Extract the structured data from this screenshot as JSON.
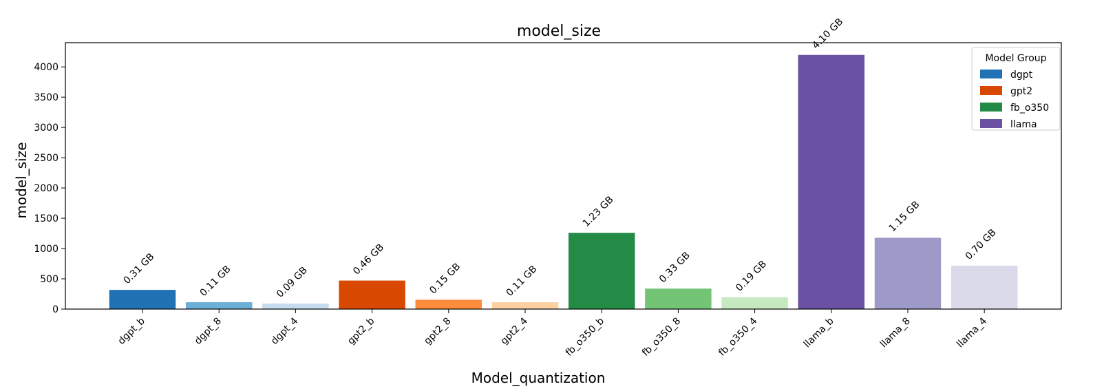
{
  "chart_data": {
    "type": "bar",
    "title": "model_size",
    "xlabel": "Model_quantization",
    "ylabel": "model_size",
    "ylim": [
      0,
      4400
    ],
    "yticks": [
      0,
      500,
      1000,
      1500,
      2000,
      2500,
      3000,
      3500,
      4000
    ],
    "grid": false,
    "legend": {
      "title": "Model Group",
      "placement": "top-right",
      "entries": [
        {
          "name": "dgpt",
          "color": "#2171b5"
        },
        {
          "name": "gpt2",
          "color": "#d94801"
        },
        {
          "name": "fb_o350",
          "color": "#238b45"
        },
        {
          "name": "llama",
          "color": "#6a51a3"
        }
      ]
    },
    "categories": [
      "dgpt_b",
      "dgpt_8",
      "dgpt_4",
      "gpt2_b",
      "gpt2_8",
      "gpt2_4",
      "fb_o350_b",
      "fb_o350_8",
      "fb_o350_4",
      "llama_b",
      "llama_8",
      "llama_4"
    ],
    "values": [
      317,
      113,
      92,
      471,
      154,
      113,
      1260,
      338,
      195,
      4198,
      1178,
      717
    ],
    "data_labels": [
      "0.31 GB",
      "0.11 GB",
      "0.09 GB",
      "0.46 GB",
      "0.15 GB",
      "0.11 GB",
      "1.23 GB",
      "0.33 GB",
      "0.19 GB",
      "4.10 GB",
      "1.15 GB",
      "0.70 GB"
    ],
    "colors": [
      "#2171b5",
      "#6baed6",
      "#c6dbef",
      "#d94801",
      "#fd8d3c",
      "#fdd0a2",
      "#238b45",
      "#74c476",
      "#c7e9c0",
      "#6a51a3",
      "#9e9ac8",
      "#dadaeb"
    ]
  }
}
